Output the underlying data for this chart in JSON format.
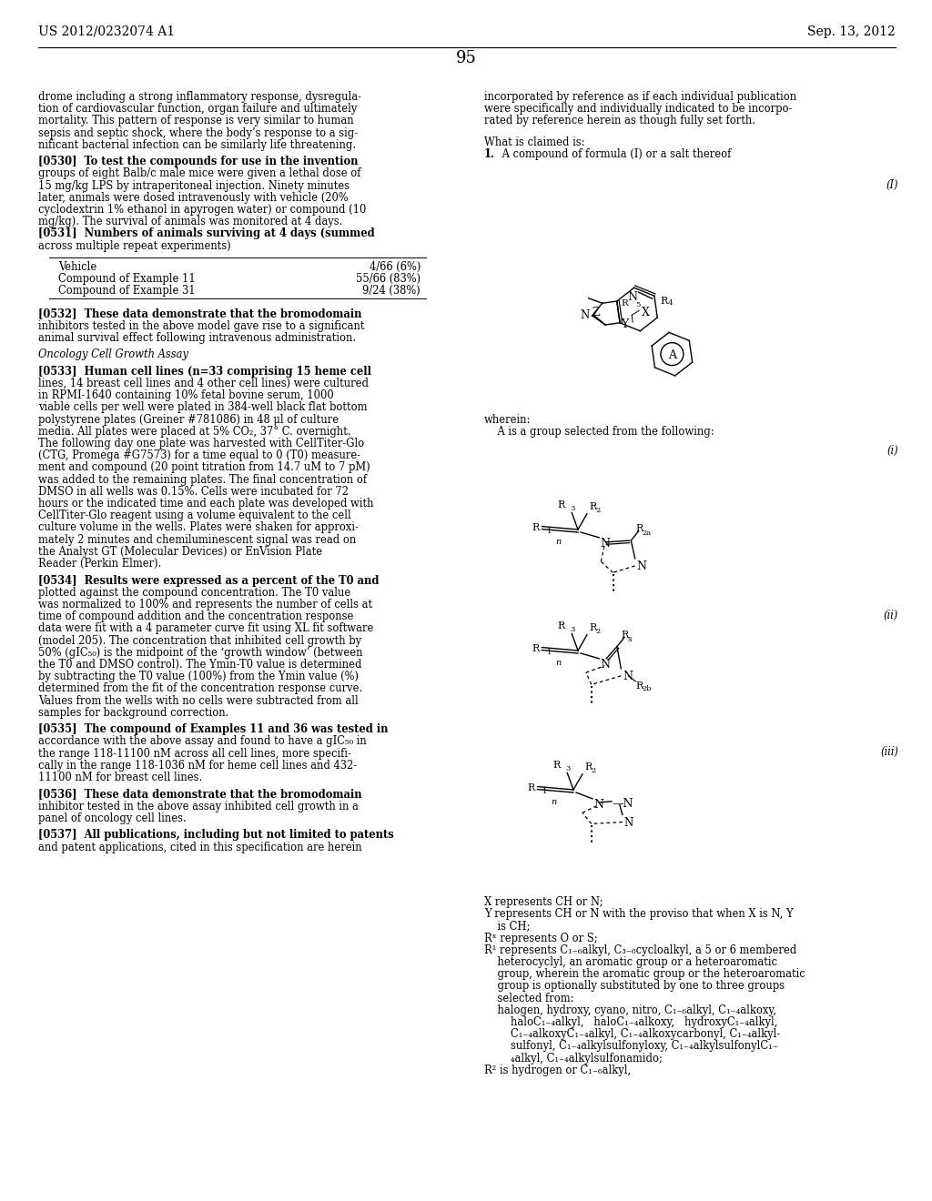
{
  "header_left": "US 2012/0232074 A1",
  "header_right": "Sep. 13, 2012",
  "page_number": "95",
  "left_col": [
    "drome including a strong inflammatory response, dysregula-",
    "tion of cardiovascular function, organ failure and ultimately",
    "mortality. This pattern of response is very similar to human",
    "sepsis and septic shock, where the body’s response to a sig-",
    "nificant bacterial infection can be similarly life threatening.",
    "",
    "[0530]  To test the compounds for use in the invention",
    "groups of eight Balb/c male mice were given a lethal dose of",
    "15 mg/kg LPS by intraperitoneal injection. Ninety minutes",
    "later, animals were dosed intravenously with vehicle (20%",
    "cyclodextrin 1% ethanol in apyrogen water) or compound (10",
    "mg/kg). The survival of animals was monitored at 4 days.",
    "[0531]  Numbers of animals surviving at 4 days (summed",
    "across multiple repeat experiments)"
  ],
  "table_rows": [
    [
      "Vehicle",
      "4/66 (6%)"
    ],
    [
      "Compound of Example 11",
      "55/66 (83%)"
    ],
    [
      "Compound of Example 31",
      "9/24 (38%)"
    ]
  ],
  "left_col2": [
    "[0532]  These data demonstrate that the bromodomain",
    "inhibitors tested in the above model gave rise to a significant",
    "animal survival effect following intravenous administration.",
    "",
    "Oncology Cell Growth Assay",
    "",
    "[0533]  Human cell lines (n=33 comprising 15 heme cell",
    "lines, 14 breast cell lines and 4 other cell lines) were cultured",
    "in RPMI-1640 containing 10% fetal bovine serum, 1000",
    "viable cells per well were plated in 384-well black flat bottom",
    "polystyrene plates (Greiner #781086) in 48 μl of culture",
    "media. All plates were placed at 5% CO₂, 37° C. overnight.",
    "The following day one plate was harvested with CellTiter-Glo",
    "(CTG, Promega #G7573) for a time equal to 0 (T0) measure-",
    "ment and compound (20 point titration from 14.7 uM to 7 pM)",
    "was added to the remaining plates. The final concentration of",
    "DMSO in all wells was 0.15%. Cells were incubated for 72",
    "hours or the indicated time and each plate was developed with",
    "CellTiter-Glo reagent using a volume equivalent to the cell",
    "culture volume in the wells. Plates were shaken for approxi-",
    "mately 2 minutes and chemiluminescent signal was read on",
    "the Analyst GT (Molecular Devices) or EnVision Plate",
    "Reader (Perkin Elmer).",
    "",
    "[0534]  Results were expressed as a percent of the T0 and",
    "plotted against the compound concentration. The T0 value",
    "was normalized to 100% and represents the number of cells at",
    "time of compound addition and the concentration response",
    "data were fit with a 4 parameter curve fit using XL fit software",
    "(model 205). The concentration that inhibited cell growth by",
    "50% (gIC₅₀) is the midpoint of the ‘growth window’ (between",
    "the T0 and DMSO control). The Ymin-T0 value is determined",
    "by subtracting the T0 value (100%) from the Ymin value (%)",
    "determined from the fit of the concentration response curve.",
    "Values from the wells with no cells were subtracted from all",
    "samples for background correction.",
    "",
    "[0535]  The compound of Examples 11 and 36 was tested in",
    "accordance with the above assay and found to have a gIC₅₀ in",
    "the range 118-11100 nM across all cell lines, more specifi-",
    "cally in the range 118-1036 nM for heme cell lines and 432-",
    "11100 nM for breast cell lines.",
    "",
    "[0536]  These data demonstrate that the bromodomain",
    "inhibitor tested in the above assay inhibited cell growth in a",
    "panel of oncology cell lines.",
    "",
    "[0537]  All publications, including but not limited to patents",
    "and patent applications, cited in this specification are herein"
  ],
  "right_col": [
    "incorporated by reference as if each individual publication",
    "were specifically and individually indicated to be incorpo-",
    "rated by reference herein as though fully set forth.",
    "",
    "What is claimed is:",
    "1. A compound of formula (I) or a salt thereof"
  ],
  "right_col2": [
    "wherein:",
    "    A is a group selected from the following:"
  ],
  "right_col3": [
    "X represents CH or N;",
    "Y represents CH or N with the proviso that when X is N, Y",
    "    is CH;",
    "Rˣ represents O or S;",
    "R¹ represents C₁₋₆alkyl, C₃₋₆cycloalkyl, a 5 or 6 membered",
    "    heterocyclyl, an aromatic group or a heteroaromatic",
    "    group, wherein the aromatic group or the heteroaromatic",
    "    group is optionally substituted by one to three groups",
    "    selected from:",
    "    halogen, hydroxy, cyano, nitro, C₁₋₆alkyl, C₁₋₄alkoxy,",
    "        haloC₁₋₄alkyl,   haloC₁₋₄alkoxy,   hydroxyC₁₋₄alkyl,",
    "        C₁₋₄alkoxyC₁₋₄alkyl, C₁₋₄alkoxycarbonyl, C₁₋₄alkyl-",
    "        sulfonyl, C₁₋₄alkylsulfonyloxy, C₁₋₄alkylsulfonylC₁₋",
    "        ₄alkyl, C₁₋₄alkylsulfonamido;",
    "R² is hydrogen or C₁₋₆alkyl,"
  ]
}
